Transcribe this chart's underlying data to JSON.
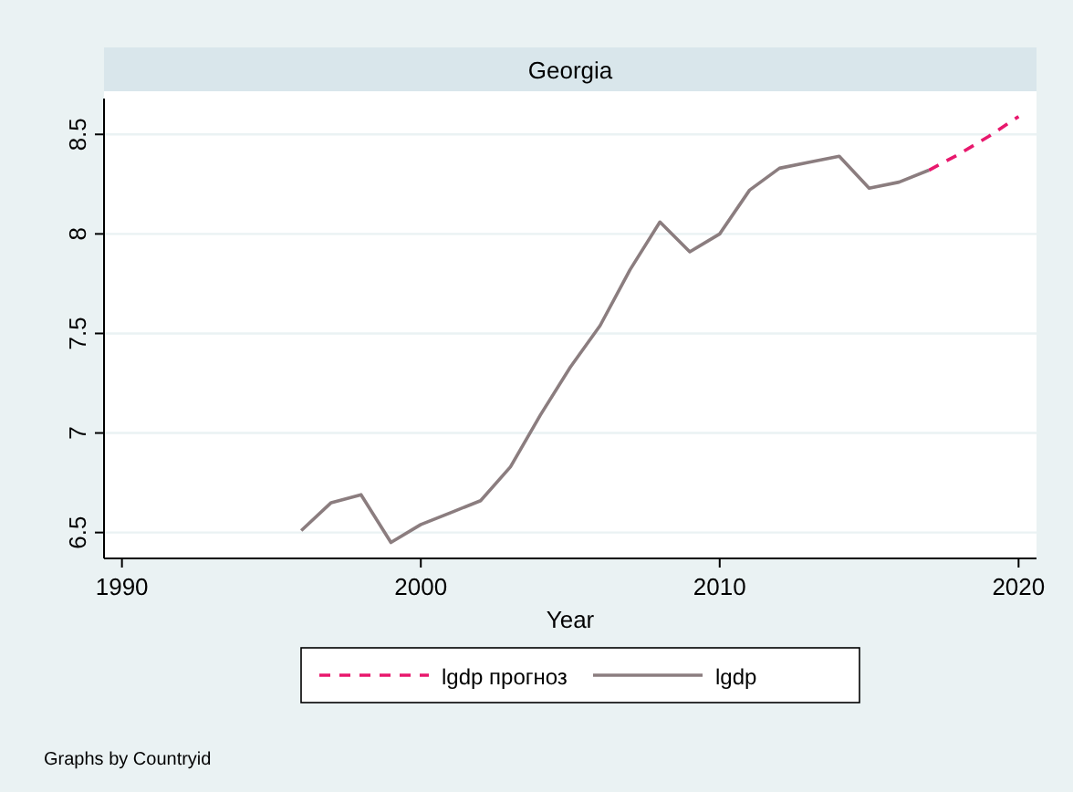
{
  "chart_data": {
    "type": "line",
    "title": "Georgia",
    "xlabel": "Year",
    "x": [
      1996,
      1997,
      1998,
      1999,
      2000,
      2001,
      2002,
      2003,
      2004,
      2005,
      2006,
      2007,
      2008,
      2009,
      2010,
      2011,
      2012,
      2013,
      2014,
      2015,
      2016,
      2017
    ],
    "series": [
      {
        "name": "lgdp прогноз",
        "color": "#e8186d",
        "line_style": "dashed",
        "x": [
          2017,
          2018,
          2019,
          2020
        ],
        "values": [
          8.32,
          8.4,
          8.49,
          8.59
        ]
      },
      {
        "name": "lgdp",
        "color": "#8b7d7f",
        "line_style": "solid",
        "values": [
          6.51,
          6.65,
          6.69,
          6.45,
          6.54,
          6.6,
          6.66,
          6.83,
          7.09,
          7.33,
          7.54,
          7.82,
          8.06,
          7.91,
          8.0,
          8.22,
          8.33,
          8.36,
          8.39,
          8.23,
          8.26,
          8.32
        ]
      }
    ],
    "xlim": [
      1989.4,
      2020.6
    ],
    "xticks": [
      1990,
      2000,
      2010,
      2020
    ],
    "ylim": [
      6.37,
      8.68
    ],
    "yticks": [
      6.5,
      7,
      7.5,
      8,
      8.5
    ],
    "grid": "y",
    "legend": "bottom",
    "marker": "none",
    "annotations": [
      "Graphs by Countryid"
    ]
  }
}
